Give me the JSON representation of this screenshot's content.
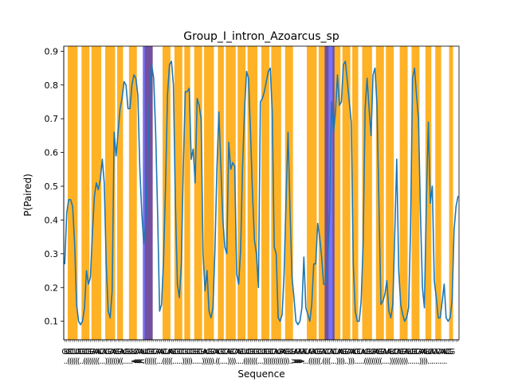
{
  "chart_data": {
    "type": "line",
    "title": "Group_I_intron_Azoarcus_sp",
    "xlabel": "Sequence",
    "ylabel": "P(Paired)",
    "xlim": [
      0,
      200
    ],
    "ylim": [
      0.045,
      0.915
    ],
    "yticks": [
      0.1,
      0.2,
      0.3,
      0.4,
      0.5,
      0.6,
      0.7,
      0.8,
      0.9
    ],
    "ytick_labels": [
      "0.1",
      "0.2",
      "0.3",
      "0.4",
      "0.5",
      "0.6",
      "0.7",
      "0.8",
      "0.9"
    ],
    "grid": false,
    "line_color": "#1f77b4",
    "highlight_colors": {
      "paired": "#ffa500",
      "pseudoknot": "#0000ff"
    },
    "sequence": "GUGCCUUGCGCCGGGAAACCACGCAAGGGAUGGUGUCAAAUUCGGCGAAACCUAAGCGCCCGCCCGGGCGUAUGGCAACGCCGAGCCAAGCUUCGGCGCCUGCGCCGAUGAAGGUGUAGAGACUAGACGGCACCCACCUAAGGCAAACGCUAUGGUGAAGGCAUAGUCCAGGGAGUGGCGAAAGUCACACAAACCGG",
    "structure": "..((((((..((((((((...)))))))((.....<<<<<.((((((...(((((.....))))).....)))))).((....))))....(((((((...)))))))))))))..>>>>>...((((((.((((...))))..))).....(((((((((....)))))))))......))))..........",
    "paired_regions": [
      [
        2,
        6
      ],
      [
        9,
        12
      ],
      [
        14,
        18
      ],
      [
        21,
        25
      ],
      [
        27,
        29
      ],
      [
        33,
        36
      ],
      [
        41,
        44
      ],
      [
        50,
        53
      ],
      [
        56,
        59
      ],
      [
        61,
        63
      ],
      [
        66,
        69
      ],
      [
        71,
        75
      ],
      [
        78,
        80
      ],
      [
        82,
        86
      ],
      [
        88,
        91
      ],
      [
        93,
        97
      ],
      [
        100,
        103
      ],
      [
        105,
        109
      ],
      [
        112,
        115
      ],
      [
        123,
        127
      ],
      [
        129,
        133
      ],
      [
        136,
        139
      ],
      [
        141,
        144
      ],
      [
        146,
        148
      ],
      [
        151,
        155
      ],
      [
        158,
        161
      ],
      [
        163,
        166
      ],
      [
        170,
        173
      ],
      [
        176,
        179
      ],
      [
        183,
        185
      ],
      [
        188,
        190
      ],
      [
        195,
        196
      ]
    ],
    "pseudoknot_regions": [
      [
        40,
        44
      ],
      [
        132,
        136
      ]
    ],
    "values": [
      0.27,
      0.42,
      0.46,
      0.46,
      0.44,
      0.33,
      0.15,
      0.1,
      0.09,
      0.1,
      0.14,
      0.25,
      0.21,
      0.23,
      0.36,
      0.47,
      0.51,
      0.49,
      0.52,
      0.58,
      0.51,
      0.27,
      0.13,
      0.11,
      0.19,
      0.66,
      0.59,
      0.66,
      0.73,
      0.76,
      0.81,
      0.8,
      0.73,
      0.73,
      0.8,
      0.83,
      0.82,
      0.77,
      0.55,
      0.42,
      0.33,
      0.4,
      0.57,
      0.79,
      0.86,
      0.82,
      0.66,
      0.42,
      0.13,
      0.15,
      0.28,
      0.5,
      0.77,
      0.86,
      0.87,
      0.8,
      0.45,
      0.21,
      0.17,
      0.27,
      0.56,
      0.78,
      0.78,
      0.79,
      0.58,
      0.61,
      0.51,
      0.76,
      0.74,
      0.7,
      0.3,
      0.19,
      0.25,
      0.13,
      0.11,
      0.14,
      0.31,
      0.55,
      0.72,
      0.56,
      0.4,
      0.32,
      0.3,
      0.63,
      0.55,
      0.57,
      0.56,
      0.24,
      0.21,
      0.31,
      0.56,
      0.73,
      0.84,
      0.82,
      0.66,
      0.48,
      0.34,
      0.3,
      0.2,
      0.75,
      0.76,
      0.78,
      0.81,
      0.84,
      0.85,
      0.72,
      0.32,
      0.3,
      0.11,
      0.1,
      0.12,
      0.24,
      0.46,
      0.66,
      0.43,
      0.23,
      0.17,
      0.1,
      0.09,
      0.1,
      0.14,
      0.29,
      0.14,
      0.12,
      0.1,
      0.15,
      0.27,
      0.27,
      0.39,
      0.35,
      0.29,
      0.21,
      0.21,
      0.27,
      0.42,
      0.75,
      0.66,
      0.72,
      0.83,
      0.74,
      0.75,
      0.86,
      0.87,
      0.81,
      0.75,
      0.69,
      0.27,
      0.13,
      0.1,
      0.1,
      0.16,
      0.33,
      0.73,
      0.82,
      0.73,
      0.65,
      0.83,
      0.85,
      0.74,
      0.44,
      0.15,
      0.16,
      0.18,
      0.22,
      0.13,
      0.11,
      0.15,
      0.36,
      0.58,
      0.25,
      0.15,
      0.12,
      0.1,
      0.11,
      0.14,
      0.38,
      0.82,
      0.85,
      0.77,
      0.7,
      0.42,
      0.2,
      0.14,
      0.46,
      0.69,
      0.45,
      0.5,
      0.22,
      0.17,
      0.11,
      0.11,
      0.16,
      0.21,
      0.11,
      0.1,
      0.11,
      0.16,
      0.37,
      0.44,
      0.47
    ]
  }
}
